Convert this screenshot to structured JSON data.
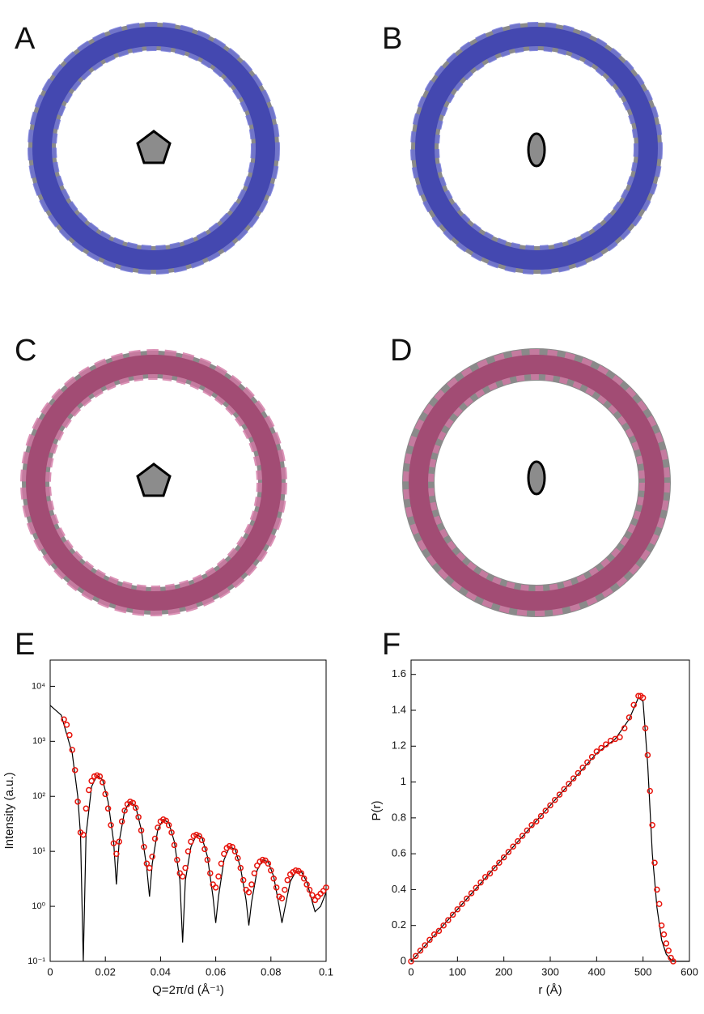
{
  "panels": [
    "A",
    "B",
    "C",
    "D",
    "E",
    "F"
  ],
  "chart_data": [
    {
      "type": "line",
      "log_y": true,
      "xlabel": "Q=2π/d (Å⁻¹)",
      "ylabel": "Intensity (a.u.)",
      "xlim": [
        0,
        0.1
      ],
      "xticks": [
        0,
        0.02,
        0.04,
        0.06,
        0.08,
        0.1
      ],
      "ylim": [
        0.1,
        30000
      ],
      "yticks": [
        {
          "value": 0.1,
          "label": "10⁻¹"
        },
        {
          "value": 1,
          "label": "10⁰"
        },
        {
          "value": 10,
          "label": "10¹"
        },
        {
          "value": 100,
          "label": "10²"
        },
        {
          "value": 1000,
          "label": "10³"
        },
        {
          "value": 10000,
          "label": "10⁴"
        }
      ],
      "series": [
        {
          "style": "line",
          "color": "#000000",
          "x": [
            0,
            0.004,
            0.008,
            0.01,
            0.011,
            0.012,
            0.013,
            0.015,
            0.017,
            0.019,
            0.021,
            0.023,
            0.024,
            0.025,
            0.027,
            0.029,
            0.031,
            0.033,
            0.035,
            0.036,
            0.037,
            0.039,
            0.041,
            0.043,
            0.045,
            0.047,
            0.048,
            0.049,
            0.051,
            0.053,
            0.055,
            0.057,
            0.059,
            0.06,
            0.061,
            0.063,
            0.065,
            0.067,
            0.069,
            0.071,
            0.072,
            0.073,
            0.075,
            0.077,
            0.079,
            0.081,
            0.083,
            0.084,
            0.085,
            0.087,
            0.089,
            0.091,
            0.093,
            0.095,
            0.096,
            0.098,
            0.1
          ],
          "values": [
            4500,
            3000,
            600,
            100,
            20,
            0.1,
            20,
            150,
            240,
            200,
            80,
            15,
            2.5,
            15,
            55,
            80,
            65,
            25,
            5,
            1.5,
            6,
            25,
            38,
            33,
            15,
            3,
            0.22,
            3,
            12,
            20,
            18,
            8,
            1.5,
            0.5,
            1.5,
            7,
            12,
            11,
            5,
            1.3,
            0.45,
            1.2,
            4.5,
            7,
            6.5,
            3.5,
            1,
            0.5,
            0.9,
            2.8,
            4.3,
            4.3,
            2.8,
            1.2,
            0.8,
            1.0,
            1.8
          ]
        },
        {
          "style": "circle",
          "color": "#e8140c",
          "x": [
            0.005,
            0.006,
            0.007,
            0.008,
            0.009,
            0.01,
            0.011,
            0.012,
            0.013,
            0.014,
            0.015,
            0.016,
            0.017,
            0.018,
            0.019,
            0.02,
            0.021,
            0.022,
            0.023,
            0.024,
            0.025,
            0.026,
            0.027,
            0.028,
            0.029,
            0.03,
            0.031,
            0.032,
            0.033,
            0.034,
            0.035,
            0.036,
            0.037,
            0.038,
            0.039,
            0.04,
            0.041,
            0.042,
            0.043,
            0.044,
            0.045,
            0.046,
            0.047,
            0.048,
            0.049,
            0.05,
            0.051,
            0.052,
            0.053,
            0.054,
            0.055,
            0.056,
            0.057,
            0.058,
            0.059,
            0.06,
            0.061,
            0.062,
            0.063,
            0.064,
            0.065,
            0.066,
            0.067,
            0.068,
            0.069,
            0.07,
            0.071,
            0.072,
            0.073,
            0.074,
            0.075,
            0.076,
            0.077,
            0.078,
            0.079,
            0.08,
            0.081,
            0.082,
            0.083,
            0.084,
            0.085,
            0.086,
            0.087,
            0.088,
            0.089,
            0.09,
            0.091,
            0.092,
            0.093,
            0.094,
            0.095,
            0.096,
            0.097,
            0.098,
            0.099,
            0.1
          ],
          "values": [
            2500,
            2000,
            1300,
            700,
            300,
            80,
            22,
            20,
            60,
            130,
            190,
            230,
            240,
            230,
            180,
            110,
            60,
            30,
            14,
            9,
            15,
            35,
            55,
            72,
            80,
            76,
            62,
            42,
            24,
            12,
            6,
            5,
            8,
            17,
            27,
            35,
            38,
            36,
            30,
            22,
            13,
            7,
            4,
            3.5,
            5,
            10,
            15,
            19,
            20,
            19,
            16,
            11,
            7,
            4,
            2.5,
            2.2,
            3.5,
            6,
            9,
            11.5,
            12.5,
            12,
            10,
            7.5,
            5,
            3,
            2,
            1.8,
            2.5,
            4,
            5.5,
            6.5,
            7,
            6.8,
            6,
            4.5,
            3.2,
            2.2,
            1.5,
            1.4,
            2,
            3,
            3.8,
            4.2,
            4.5,
            4.4,
            4,
            3.2,
            2.5,
            2,
            1.6,
            1.3,
            1.5,
            1.7,
            1.9,
            2.2
          ]
        }
      ]
    },
    {
      "type": "line",
      "log_y": false,
      "xlabel": "r (Å)",
      "ylabel": "P(r)",
      "xlim": [
        0,
        600
      ],
      "xticks": [
        0,
        100,
        200,
        300,
        400,
        500,
        600
      ],
      "ylim": [
        0,
        1.68
      ],
      "yticks": [
        0,
        0.2,
        0.4,
        0.6,
        0.8,
        1,
        1.2,
        1.4,
        1.6
      ],
      "series": [
        {
          "style": "line",
          "color": "#000000",
          "x": [
            0,
            100,
            200,
            300,
            400,
            440,
            470,
            490,
            500,
            510,
            520,
            530,
            540,
            550,
            560,
            570,
            600
          ],
          "values": [
            0,
            0.29,
            0.58,
            0.87,
            1.16,
            1.24,
            1.35,
            1.47,
            1.45,
            1.1,
            0.6,
            0.3,
            0.12,
            0.04,
            0.01,
            0,
            0
          ]
        },
        {
          "style": "circle",
          "color": "#e8140c",
          "x": [
            0,
            10,
            20,
            30,
            40,
            50,
            60,
            70,
            80,
            90,
            100,
            110,
            120,
            130,
            140,
            150,
            160,
            170,
            180,
            190,
            200,
            210,
            220,
            230,
            240,
            250,
            260,
            270,
            280,
            290,
            300,
            310,
            320,
            330,
            340,
            350,
            360,
            370,
            380,
            390,
            400,
            410,
            420,
            430,
            440,
            450,
            460,
            470,
            480,
            490,
            495,
            500,
            505,
            510,
            515,
            520,
            525,
            530,
            535,
            540,
            545,
            550,
            555,
            560,
            565
          ],
          "values": [
            0,
            0.03,
            0.06,
            0.09,
            0.12,
            0.15,
            0.17,
            0.2,
            0.23,
            0.26,
            0.29,
            0.32,
            0.35,
            0.38,
            0.41,
            0.44,
            0.47,
            0.49,
            0.52,
            0.55,
            0.58,
            0.61,
            0.64,
            0.67,
            0.7,
            0.73,
            0.76,
            0.78,
            0.81,
            0.84,
            0.87,
            0.9,
            0.93,
            0.96,
            0.99,
            1.02,
            1.05,
            1.08,
            1.11,
            1.14,
            1.17,
            1.19,
            1.21,
            1.23,
            1.24,
            1.25,
            1.3,
            1.36,
            1.43,
            1.48,
            1.48,
            1.47,
            1.3,
            1.15,
            0.95,
            0.76,
            0.55,
            0.4,
            0.32,
            0.2,
            0.15,
            0.1,
            0.06,
            0.02,
            0
          ]
        }
      ]
    }
  ]
}
